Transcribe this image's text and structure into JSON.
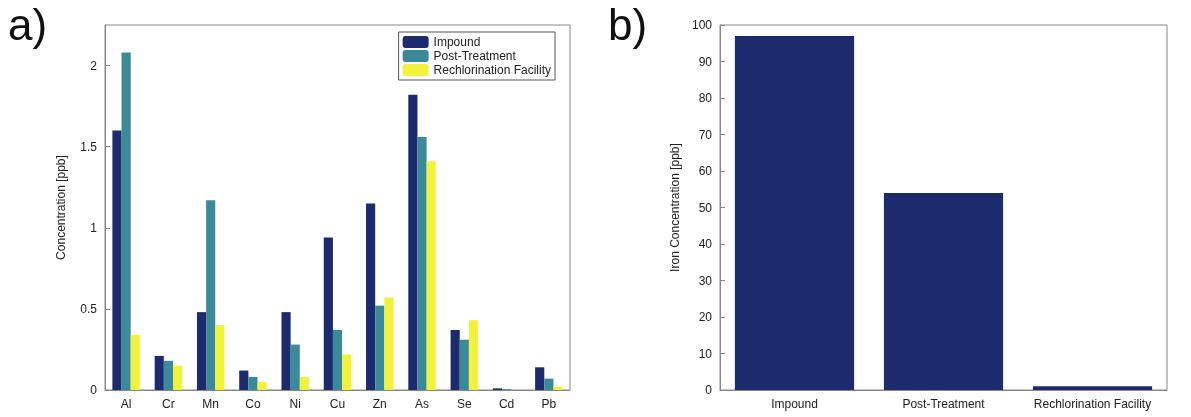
{
  "chart_data": [
    {
      "type": "bar",
      "annotations": [
        "a)"
      ],
      "ylabel": "Concentration [ppb]",
      "categories": [
        "Al",
        "Cr",
        "Mn",
        "Co",
        "Ni",
        "Cu",
        "Zn",
        "As",
        "Se",
        "Cd",
        "Pb"
      ],
      "series": [
        {
          "name": "Impound",
          "color": "#1c2a6e",
          "values": [
            1.6,
            0.21,
            0.48,
            0.12,
            0.48,
            0.94,
            1.15,
            1.82,
            0.37,
            0.01,
            0.14
          ]
        },
        {
          "name": "Post-Treatment",
          "color": "#3a8a9a",
          "values": [
            2.08,
            0.18,
            1.17,
            0.08,
            0.28,
            0.37,
            0.52,
            1.56,
            0.31,
            0.005,
            0.07
          ]
        },
        {
          "name": "Rechlorination Facility",
          "color": "#f2f23a",
          "values": [
            0.34,
            0.15,
            0.4,
            0.05,
            0.08,
            0.22,
            0.57,
            1.41,
            0.43,
            0,
            0.02
          ]
        }
      ],
      "ylim": [
        0,
        2.25
      ],
      "yticks": [
        0,
        0.5,
        1,
        1.5,
        2
      ],
      "grid": false,
      "legend": "top right"
    },
    {
      "type": "bar",
      "annotations": [
        "b)"
      ],
      "ylabel": "Iron Concentration [ppb]",
      "categories": [
        "Impound",
        "Post-Treatment",
        "Rechlorination Facility"
      ],
      "values": [
        97,
        54,
        1
      ],
      "color": "#1c2a6e",
      "ylim": [
        0,
        100
      ],
      "yticks": [
        0,
        10,
        20,
        30,
        40,
        50,
        60,
        70,
        80,
        90,
        100
      ],
      "grid": false,
      "legend": false
    }
  ]
}
